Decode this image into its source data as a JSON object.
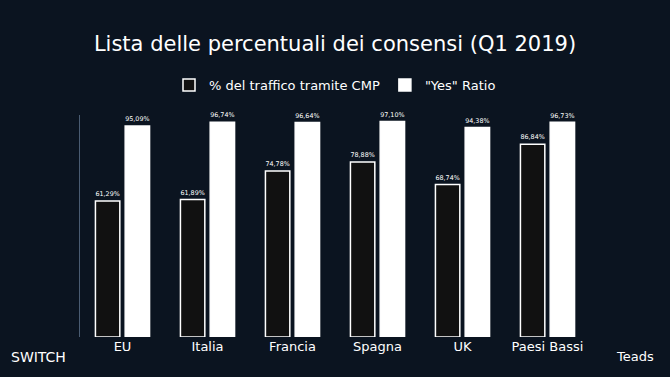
{
  "chart_data": {
    "type": "bar",
    "title": "Lista delle percentuali dei consensi (Q1 2019)",
    "categories": [
      "EU",
      "Italia",
      "Francia",
      "Spagna",
      "UK",
      "Paesi Bassi"
    ],
    "series": [
      {
        "name": "% del traffico tramite CMP",
        "color": "#111111",
        "values": [
          61.29,
          61.89,
          74.78,
          78.88,
          68.74,
          86.84
        ],
        "value_labels": [
          "61,29%",
          "61,89%",
          "74,78%",
          "78,88%",
          "68,74%",
          "86,84%"
        ]
      },
      {
        "name": "\"Yes\" Ratio",
        "color": "#ffffff",
        "values": [
          95.09,
          96.74,
          96.64,
          97.1,
          94.38,
          96.73
        ],
        "value_labels": [
          "95,09%",
          "96,74%",
          "96,64%",
          "97,10%",
          "94,38%",
          "96,73%"
        ]
      }
    ],
    "ylim": [
      0,
      100
    ],
    "yticks": [],
    "grid": false,
    "legend": "top",
    "data_labels": true,
    "tick_labels": "x",
    "annotations": [
      "SWITCH",
      "Teads"
    ]
  }
}
